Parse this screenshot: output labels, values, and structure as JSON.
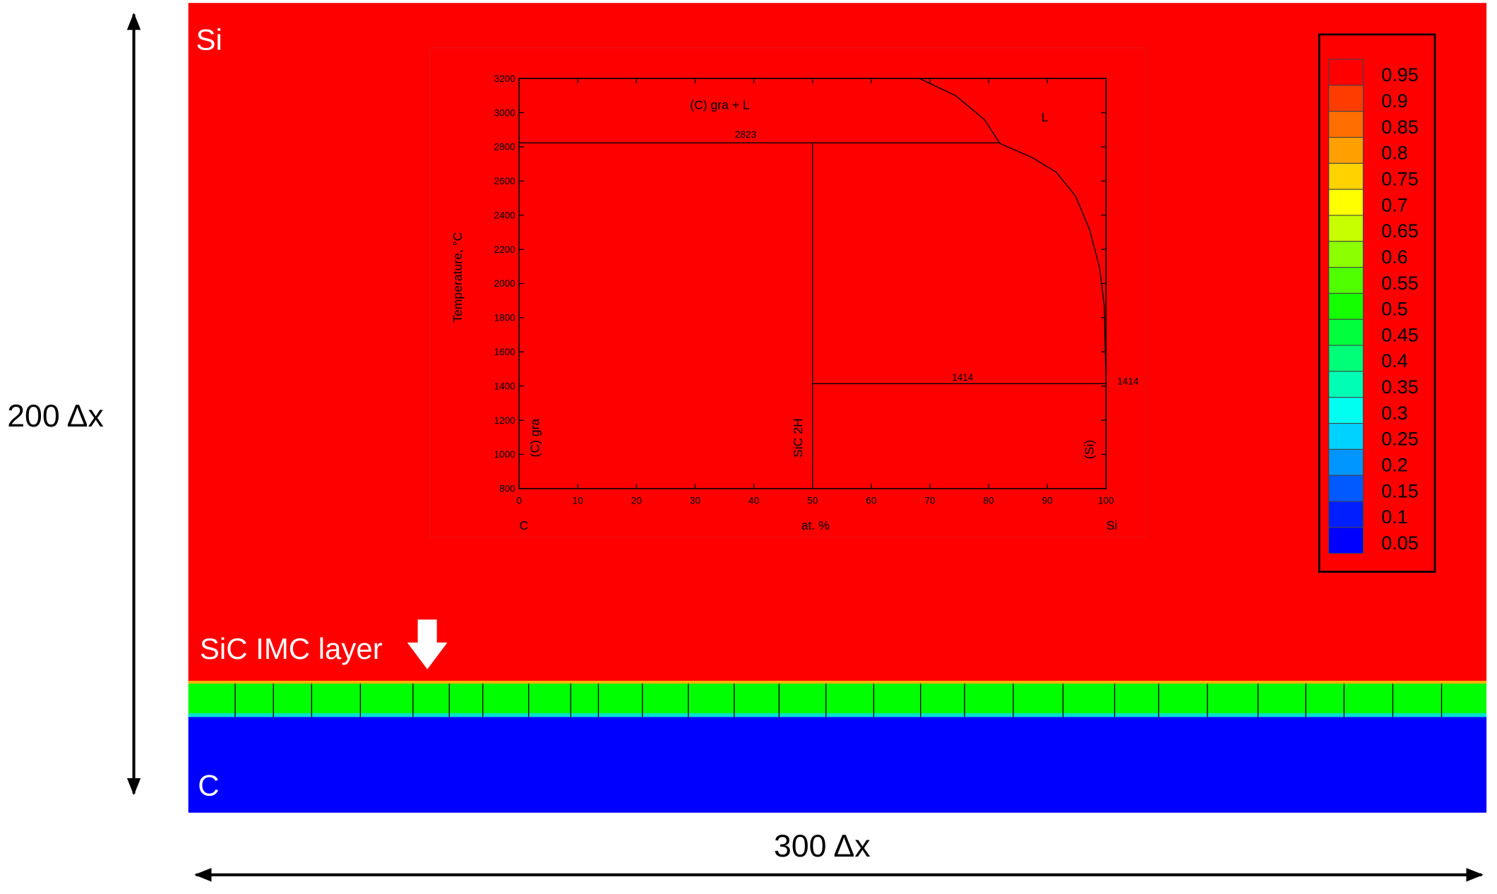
{
  "figure": {
    "top_label": "Si",
    "bottom_label": "C",
    "layer_label": "SiC IMC layer",
    "height_label": "200 Δx",
    "width_label": "300 Δx"
  },
  "colorbar": {
    "ticks": [
      0.95,
      0.9,
      0.85,
      0.8,
      0.75,
      0.7,
      0.65,
      0.6,
      0.55,
      0.5,
      0.45,
      0.4,
      0.35,
      0.3,
      0.25,
      0.2,
      0.15,
      0.1,
      0.05
    ],
    "colors": [
      "#ff0000",
      "#ff3c00",
      "#ff6e00",
      "#ffa000",
      "#ffd200",
      "#ffff00",
      "#c8ff00",
      "#8cff00",
      "#50ff00",
      "#14ff00",
      "#00ff3c",
      "#00ff78",
      "#00ffb4",
      "#00fff0",
      "#00d2ff",
      "#0096ff",
      "#005aff",
      "#001eff",
      "#0000ff"
    ]
  },
  "chart_data": {
    "type": "line",
    "ylabel": "Temperature, °C",
    "xlabel": "at. %",
    "x_end_labels": [
      "C",
      "Si"
    ],
    "xlim": [
      0,
      100
    ],
    "ylim": [
      800,
      3200
    ],
    "xticks": [
      0,
      10,
      20,
      30,
      40,
      50,
      60,
      70,
      80,
      90,
      100
    ],
    "yticks": [
      800,
      1000,
      1200,
      1400,
      1600,
      1800,
      2000,
      2200,
      2400,
      2600,
      2800,
      3000,
      3200
    ],
    "series": [
      {
        "color": "#000000",
        "x": [
          68.2,
          74.4,
          79.3,
          81.9,
          87.5,
          91.5,
          94.8,
          97.2,
          98.9,
          99.7,
          100
        ],
        "values": [
          3200,
          3099,
          2959,
          2820,
          2736,
          2652,
          2512,
          2316,
          2092,
          1869,
          1414
        ]
      },
      {
        "color": "#000000",
        "x": [
          0,
          82
        ],
        "values": [
          2823,
          2823
        ]
      },
      {
        "color": "#000000",
        "x": [
          50,
          50
        ],
        "values": [
          800,
          2823
        ]
      },
      {
        "color": "#000000",
        "x": [
          50,
          100
        ],
        "values": [
          1414,
          1414
        ]
      }
    ],
    "annotations": [
      "(C) gra + L",
      "L",
      "2823",
      "1414",
      "1414",
      "(C) gra",
      "SiC 2H",
      "(Si)"
    ]
  }
}
